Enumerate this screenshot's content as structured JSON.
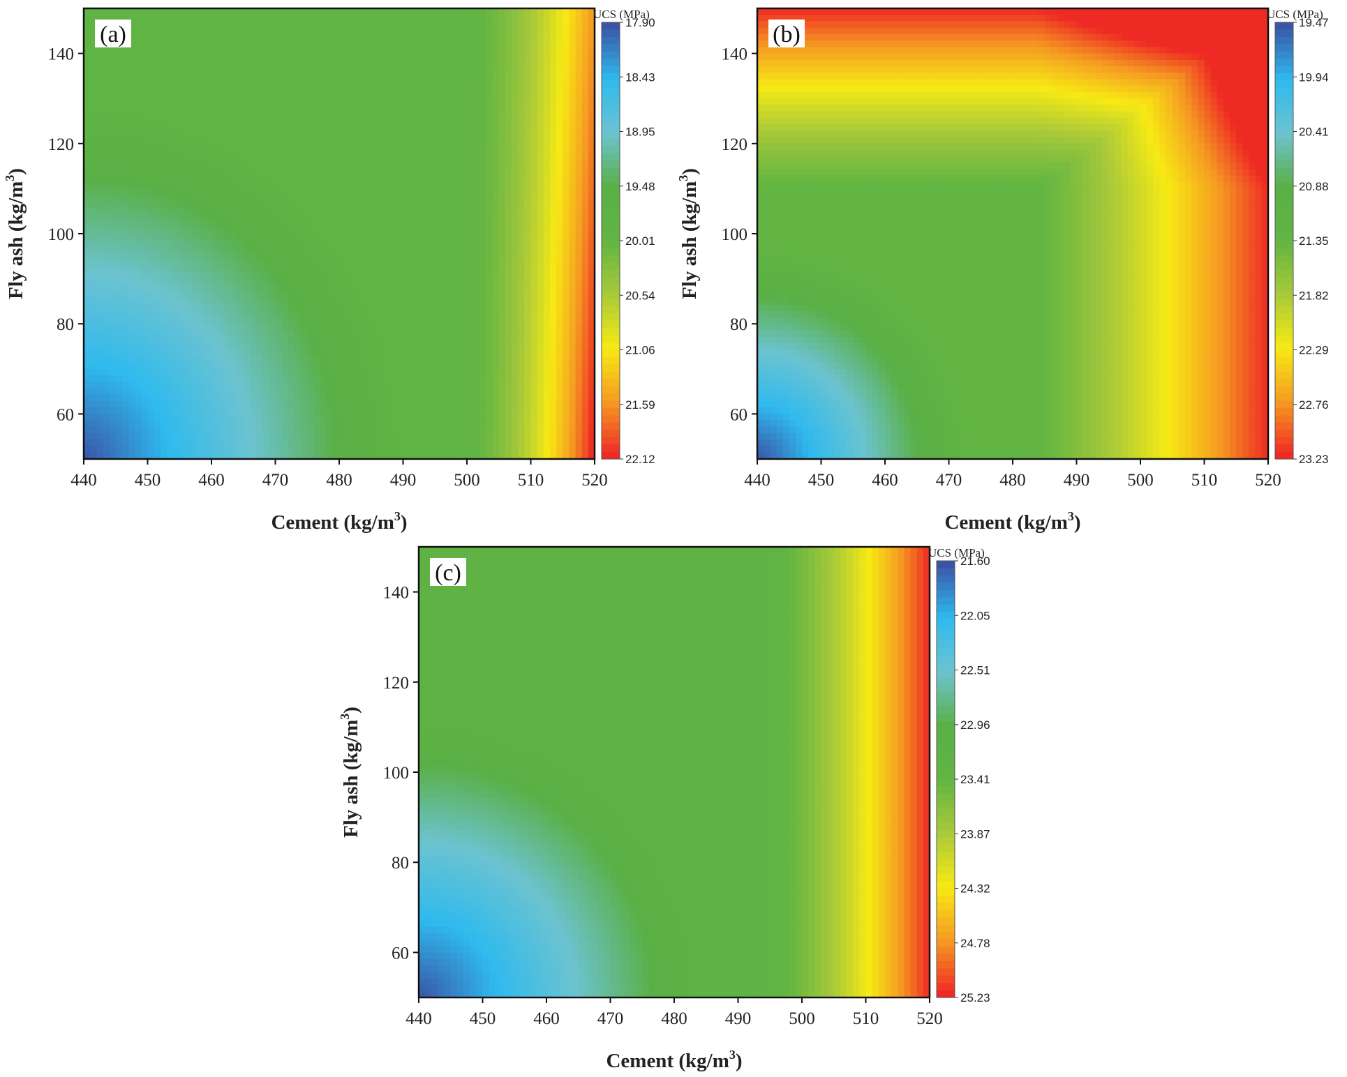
{
  "chart_data": [
    {
      "type": "heatmap",
      "panel_label": "(a)",
      "xlabel": "Cement (kg/m3)",
      "xlabel_main": "Cement (kg/m",
      "xlabel_sup": "3",
      "xlabel_close": ")",
      "ylabel": "Fly ash (kg/m3)",
      "ylabel_main": "Fly ash (kg/m",
      "ylabel_sup": "3",
      "ylabel_close": ")",
      "xlim": [
        440,
        520
      ],
      "ylim": [
        50,
        150
      ],
      "xticks": [
        440,
        450,
        460,
        470,
        480,
        490,
        500,
        510,
        520
      ],
      "yticks": [
        60,
        80,
        100,
        120,
        140
      ],
      "colorbar_title": "UCS (MPa)",
      "colorbar_ticks": [
        "17.90",
        "18.43",
        "18.95",
        "19.48",
        "20.01",
        "20.54",
        "21.06",
        "21.59",
        "22.12"
      ],
      "range": [
        17.9,
        22.12
      ],
      "model": "a"
    },
    {
      "type": "heatmap",
      "panel_label": "(b)",
      "xlabel": "Cement (kg/m3)",
      "xlabel_main": "Cement (kg/m",
      "xlabel_sup": "3",
      "xlabel_close": ")",
      "ylabel": "Fly ash (kg/m3)",
      "ylabel_main": "Fly ash (kg/m",
      "ylabel_sup": "3",
      "ylabel_close": ")",
      "xlim": [
        440,
        520
      ],
      "ylim": [
        50,
        150
      ],
      "xticks": [
        440,
        450,
        460,
        470,
        480,
        490,
        500,
        510,
        520
      ],
      "yticks": [
        60,
        80,
        100,
        120,
        140
      ],
      "colorbar_title": "UCS (MPa)",
      "colorbar_ticks": [
        "19.47",
        "19.94",
        "20.41",
        "20.88",
        "21.35",
        "21.82",
        "22.29",
        "22.76",
        "23.23"
      ],
      "range": [
        19.47,
        23.23
      ],
      "model": "b"
    },
    {
      "type": "heatmap",
      "panel_label": "(c)",
      "xlabel": "Cement (kg/m3)",
      "xlabel_main": "Cement (kg/m",
      "xlabel_sup": "3",
      "xlabel_close": ")",
      "ylabel": "Fly ash (kg/m3)",
      "ylabel_main": "Fly ash (kg/m",
      "ylabel_sup": "3",
      "ylabel_close": ")",
      "xlim": [
        440,
        520
      ],
      "ylim": [
        50,
        150
      ],
      "xticks": [
        440,
        450,
        460,
        470,
        480,
        490,
        500,
        510,
        520
      ],
      "yticks": [
        60,
        80,
        100,
        120,
        140
      ],
      "colorbar_title": "UCS (MPa)",
      "colorbar_ticks": [
        "21.60",
        "22.05",
        "22.51",
        "22.96",
        "23.41",
        "23.87",
        "24.32",
        "24.78",
        "25.23"
      ],
      "range": [
        21.6,
        25.23
      ],
      "model": "c"
    }
  ],
  "colormap": [
    "#3a55a6",
    "#2fbaee",
    "#6cc3d0",
    "#5ab046",
    "#62b543",
    "#a8c93a",
    "#f7ea14",
    "#f59b22",
    "#ee2a24"
  ]
}
